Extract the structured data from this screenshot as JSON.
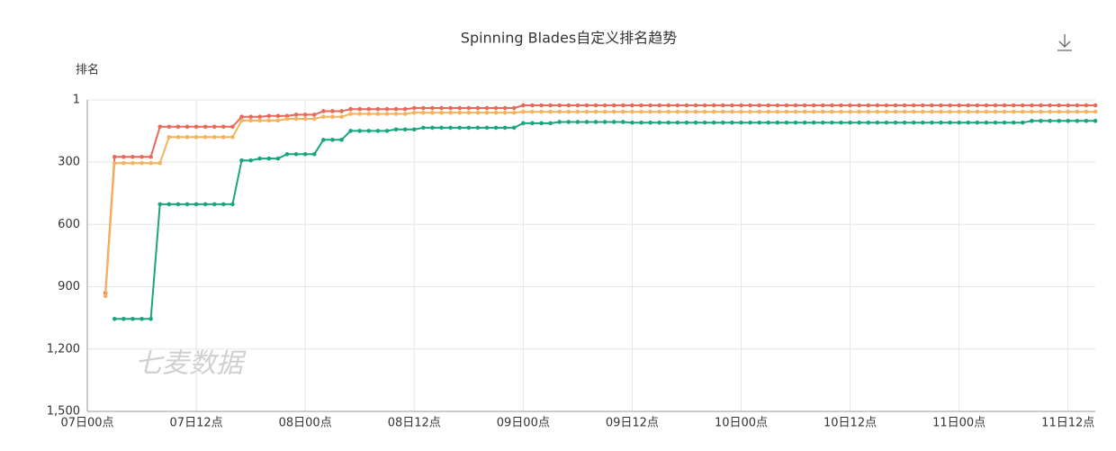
{
  "chart_data": {
    "type": "line",
    "title": "Spinning Blades自定义排名趋势",
    "y_label": "排名",
    "watermark": "七麦数据",
    "x": [
      0,
      1,
      2,
      3,
      4,
      5,
      6,
      7,
      8,
      9,
      10,
      11,
      12,
      13,
      14,
      15,
      16,
      17,
      18,
      19,
      20,
      21,
      22,
      23,
      24,
      25,
      26,
      27,
      28,
      29,
      30,
      31,
      32,
      33,
      34,
      35,
      36,
      37,
      38,
      39,
      40,
      41,
      42,
      43,
      44,
      45,
      46,
      47,
      48,
      49,
      50,
      51,
      52,
      53,
      54,
      55,
      56,
      57,
      58,
      59,
      60,
      61,
      62,
      63,
      64,
      65,
      66,
      67,
      68,
      69,
      70,
      71,
      72,
      73,
      74,
      75,
      76,
      77,
      78,
      79,
      80,
      81,
      82,
      83,
      84,
      85,
      86,
      87,
      88,
      89,
      90,
      91,
      92,
      93,
      94,
      95,
      96,
      97,
      98,
      99,
      100,
      101,
      102,
      103,
      104,
      105,
      106,
      107,
      108,
      109,
      110,
      111
    ],
    "xlim": [
      0,
      111
    ],
    "xticks": [
      {
        "value": 0,
        "label": "07日00点"
      },
      {
        "value": 12,
        "label": "07日12点"
      },
      {
        "value": 24,
        "label": "08日00点"
      },
      {
        "value": 36,
        "label": "08日12点"
      },
      {
        "value": 48,
        "label": "09日00点"
      },
      {
        "value": 60,
        "label": "09日12点"
      },
      {
        "value": 72,
        "label": "10日00点"
      },
      {
        "value": 84,
        "label": "10日12点"
      },
      {
        "value": 96,
        "label": "11日00点"
      },
      {
        "value": 108,
        "label": "11日12点"
      }
    ],
    "ylim": [
      1,
      1500
    ],
    "y_inverse": true,
    "yticks": [
      1,
      300,
      600,
      900,
      {
        "value": 1200,
        "label": "1,200"
      },
      {
        "value": 1500,
        "label": "1,500"
      }
    ],
    "grid": true,
    "series": [
      {
        "color": "#e8685a",
        "values": [
          null,
          null,
          930,
          275,
          275,
          275,
          275,
          275,
          130,
          130,
          130,
          130,
          130,
          130,
          130,
          130,
          130,
          82,
          82,
          82,
          78,
          78,
          78,
          72,
          72,
          72,
          55,
          55,
          55,
          45,
          45,
          45,
          45,
          45,
          45,
          45,
          40,
          40,
          40,
          40,
          40,
          40,
          40,
          40,
          40,
          40,
          40,
          40,
          27,
          27,
          27,
          27,
          27,
          27,
          27,
          27,
          27,
          27,
          27,
          27,
          27,
          27,
          27,
          27,
          27,
          27,
          27,
          27,
          27,
          27,
          27,
          27,
          27,
          27,
          27,
          27,
          27,
          27,
          27,
          27,
          27,
          27,
          27,
          27,
          27,
          27,
          27,
          27,
          27,
          27,
          27,
          27,
          27,
          27,
          27,
          27,
          27,
          27,
          27,
          27,
          27,
          27,
          27,
          27,
          27,
          27,
          27,
          27,
          27,
          27,
          27,
          27
        ]
      },
      {
        "color": "#f6b25c",
        "values": [
          null,
          null,
          945,
          305,
          305,
          305,
          305,
          305,
          305,
          180,
          180,
          180,
          180,
          180,
          180,
          180,
          180,
          100,
          100,
          100,
          100,
          100,
          92,
          92,
          92,
          92,
          82,
          82,
          82,
          68,
          68,
          68,
          68,
          68,
          68,
          68,
          62,
          62,
          62,
          62,
          62,
          62,
          62,
          62,
          62,
          62,
          62,
          62,
          58,
          58,
          58,
          58,
          58,
          58,
          58,
          58,
          58,
          58,
          58,
          58,
          58,
          58,
          58,
          58,
          58,
          58,
          58,
          58,
          58,
          58,
          58,
          58,
          58,
          58,
          58,
          58,
          58,
          58,
          58,
          58,
          58,
          58,
          58,
          58,
          58,
          58,
          58,
          58,
          58,
          58,
          58,
          58,
          58,
          58,
          58,
          58,
          58,
          58,
          58,
          58,
          58,
          58,
          58,
          58,
          58,
          58,
          58,
          58,
          58,
          58,
          58,
          58
        ]
      },
      {
        "color": "#19a67f",
        "values": [
          null,
          null,
          null,
          1055,
          1055,
          1055,
          1055,
          1055,
          503,
          503,
          503,
          503,
          503,
          503,
          503,
          503,
          503,
          292,
          292,
          283,
          283,
          283,
          262,
          262,
          262,
          262,
          193,
          193,
          193,
          150,
          150,
          150,
          150,
          150,
          143,
          143,
          143,
          135,
          135,
          135,
          135,
          135,
          135,
          135,
          135,
          135,
          135,
          135,
          113,
          113,
          113,
          113,
          107,
          107,
          107,
          107,
          107,
          107,
          107,
          107,
          110,
          110,
          110,
          110,
          110,
          110,
          110,
          110,
          110,
          110,
          110,
          110,
          110,
          110,
          110,
          110,
          110,
          110,
          110,
          110,
          110,
          110,
          110,
          110,
          110,
          110,
          110,
          110,
          110,
          110,
          110,
          110,
          110,
          110,
          110,
          110,
          110,
          110,
          110,
          110,
          110,
          110,
          110,
          110,
          102,
          102,
          102,
          102,
          102,
          102,
          102,
          102
        ]
      }
    ]
  }
}
